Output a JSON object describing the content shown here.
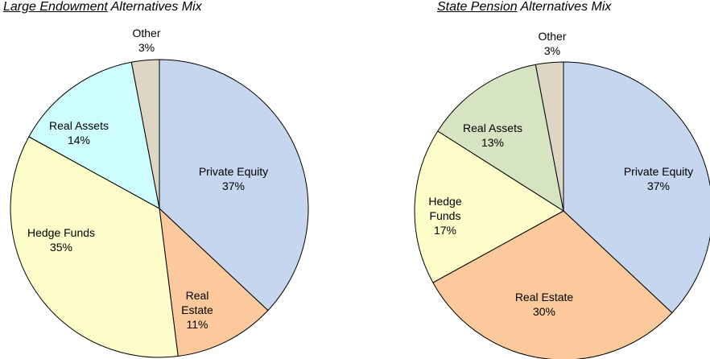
{
  "chart_data": [
    {
      "type": "pie",
      "title": {
        "underlined": "Large Endowment",
        "rest": "Alternatives Mix"
      },
      "categories": [
        "Private Equity",
        "Real Estate",
        "Hedge Funds",
        "Real Assets",
        "Other"
      ],
      "values": [
        37,
        11,
        35,
        14,
        3
      ],
      "value_labels": [
        "37%",
        "11%",
        "35%",
        "14%",
        "3%"
      ],
      "colors": [
        "#c6d6ef",
        "#fbc99b",
        "#fdfdc9",
        "#cdfdfd",
        "#ddd6c5"
      ]
    },
    {
      "type": "pie",
      "title": {
        "underlined": "State Pension",
        "rest": "Alternatives Mix"
      },
      "categories": [
        "Private Equity",
        "Real Estate",
        "Hedge Funds",
        "Real Assets",
        "Other"
      ],
      "values": [
        37,
        30,
        17,
        13,
        3
      ],
      "value_labels": [
        "37%",
        "30%",
        "17%",
        "13%",
        "3%"
      ],
      "colors": [
        "#c6d6ef",
        "#fbc99b",
        "#fdfdc9",
        "#d7e4c1",
        "#ddd6c5"
      ]
    }
  ]
}
